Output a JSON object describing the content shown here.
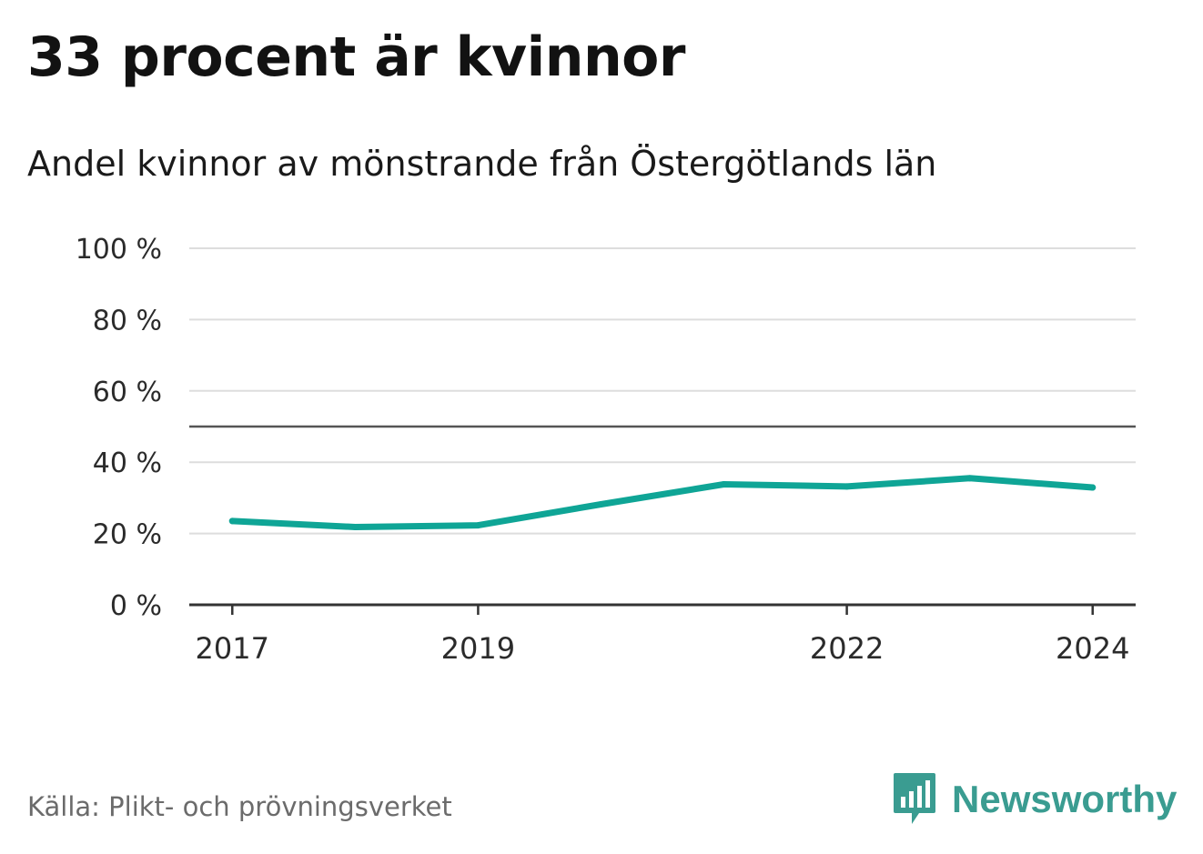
{
  "title": "33 procent är kvinnor",
  "subtitle": "Andel kvinnor av mönstrande från Östergötlands län",
  "source": "Källa: Plikt- och prövningsverket",
  "logo": {
    "text": "Newsworthy",
    "icon": "bar-chart-speech-icon"
  },
  "colors": {
    "line": "#0fa596",
    "grid": "#dddddd",
    "axis": "#333333",
    "reference": "#555555",
    "logo": "#3a9c91"
  },
  "chart_data": {
    "type": "line",
    "title": "33 procent är kvinnor",
    "subtitle": "Andel kvinnor av mönstrande från Östergötlands län",
    "x": [
      2017,
      2018,
      2019,
      2020,
      2021,
      2022,
      2023,
      2024
    ],
    "series": [
      {
        "name": "Andel kvinnor",
        "values": [
          23.5,
          21.8,
          22.3,
          28.2,
          33.8,
          33.2,
          35.5,
          32.9
        ]
      }
    ],
    "xlim": [
      2016.65,
      2024.35
    ],
    "xticks": [
      2017,
      2019,
      2022,
      2024
    ],
    "xtick_labels": [
      "2017",
      "2019",
      "2022",
      "2024"
    ],
    "ylim": [
      0,
      100
    ],
    "yticks": [
      0,
      20,
      40,
      60,
      80,
      100
    ],
    "ytick_labels": [
      "0 %",
      "20 %",
      "40 %",
      "60 %",
      "80 %",
      "100 %"
    ],
    "reference_line": 50,
    "xlabel": "",
    "ylabel": "",
    "grid": true
  }
}
